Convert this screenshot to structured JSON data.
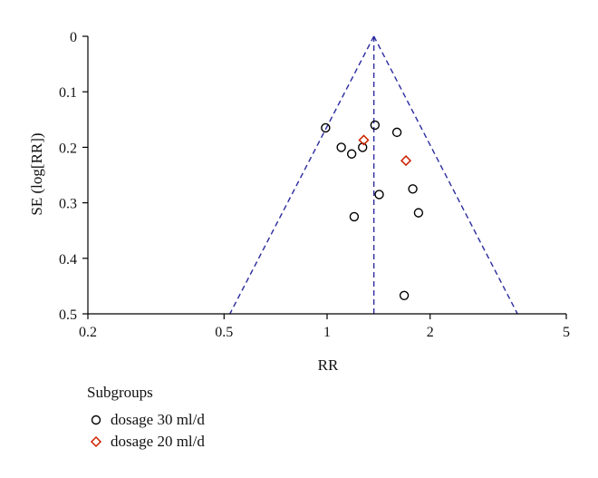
{
  "chart_data": {
    "type": "scatter",
    "subtype": "funnel-plot",
    "xlabel": "RR",
    "ylabel": "SE (log[RR])",
    "x_scale": "log",
    "x_ticks": [
      0.2,
      0.5,
      1,
      2,
      5
    ],
    "x_tick_labels": [
      "0.2",
      "0.5",
      "1",
      "2",
      "5"
    ],
    "y_reversed": true,
    "ylim": [
      0,
      0.5
    ],
    "y_ticks": [
      0,
      0.1,
      0.2,
      0.3,
      0.4,
      0.5
    ],
    "y_tick_labels": [
      "0",
      "0.1",
      "0.2",
      "0.3",
      "0.4",
      "0.5"
    ],
    "pooled_rr": 1.37,
    "funnel": {
      "apex": [
        1.37,
        0
      ],
      "left_base": [
        0.52,
        0.5
      ],
      "right_base": [
        3.6,
        0.5
      ],
      "line_style": "dashed",
      "color": "#2b2ba0"
    },
    "legend": {
      "title": "Subgroups",
      "placement": "bottom-left"
    },
    "series": [
      {
        "name": "dosage 30 ml/d",
        "marker": "circle",
        "color": "#000000",
        "points": [
          {
            "x": 0.99,
            "y": 0.165
          },
          {
            "x": 1.38,
            "y": 0.16
          },
          {
            "x": 1.6,
            "y": 0.173
          },
          {
            "x": 1.1,
            "y": 0.2
          },
          {
            "x": 1.18,
            "y": 0.212
          },
          {
            "x": 1.27,
            "y": 0.2
          },
          {
            "x": 1.42,
            "y": 0.285
          },
          {
            "x": 1.78,
            "y": 0.275
          },
          {
            "x": 1.85,
            "y": 0.318
          },
          {
            "x": 1.2,
            "y": 0.325
          },
          {
            "x": 1.68,
            "y": 0.467
          }
        ]
      },
      {
        "name": "dosage 20 ml/d",
        "marker": "diamond",
        "color": "#cc2200",
        "points": [
          {
            "x": 1.28,
            "y": 0.187
          },
          {
            "x": 1.7,
            "y": 0.224
          }
        ]
      }
    ]
  }
}
